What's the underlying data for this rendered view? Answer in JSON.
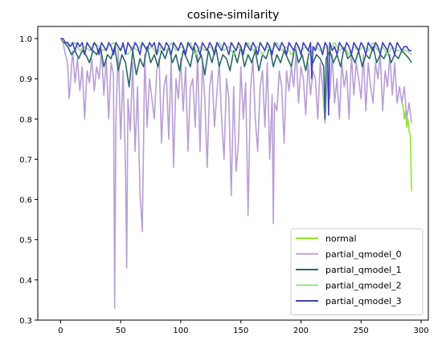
{
  "chart_data": {
    "type": "line",
    "title": "cosine-similarity",
    "xlabel": "",
    "ylabel": "",
    "xlim": [
      -19,
      306
    ],
    "ylim": [
      0.3,
      1.03
    ],
    "x_ticks": [
      0,
      50,
      100,
      150,
      200,
      250,
      300
    ],
    "y_ticks": [
      0.3,
      0.4,
      0.5,
      0.6,
      0.7,
      0.8,
      0.9,
      1.0
    ],
    "x_tick_labels": [
      "0",
      "50",
      "100",
      "150",
      "200",
      "250",
      "300"
    ],
    "y_tick_labels": [
      "0.3",
      "0.4",
      "0.5",
      "0.6",
      "0.7",
      "0.8",
      "0.9",
      "1.0"
    ],
    "grid": false,
    "legend_position": "lower-right",
    "series": [
      {
        "name": "normal",
        "color": "#8ee82a",
        "x": [
          284,
          285,
          286,
          287,
          288,
          289,
          290,
          291,
          292
        ],
        "y": [
          0.84,
          0.83,
          0.8,
          0.82,
          0.78,
          0.8,
          0.77,
          0.76,
          0.62
        ]
      },
      {
        "name": "partial_qmodel_0",
        "color": "#b89fd6",
        "x": [
          0,
          2,
          4,
          5,
          6,
          7,
          8,
          10,
          12,
          14,
          16,
          18,
          20,
          22,
          24,
          26,
          28,
          30,
          32,
          34,
          36,
          38,
          40,
          42,
          44,
          45,
          46,
          48,
          50,
          52,
          54,
          55,
          56,
          58,
          60,
          62,
          64,
          66,
          68,
          70,
          72,
          74,
          76,
          78,
          80,
          82,
          84,
          86,
          88,
          90,
          92,
          94,
          96,
          98,
          100,
          102,
          104,
          106,
          108,
          110,
          112,
          114,
          116,
          118,
          120,
          122,
          124,
          126,
          128,
          130,
          132,
          134,
          136,
          138,
          140,
          142,
          144,
          146,
          148,
          150,
          152,
          154,
          156,
          158,
          160,
          162,
          164,
          166,
          168,
          170,
          172,
          174,
          176,
          177,
          178,
          180,
          182,
          184,
          186,
          188,
          190,
          192,
          194,
          196,
          198,
          200,
          202,
          204,
          206,
          208,
          210,
          212,
          214,
          216,
          218,
          220,
          222,
          224,
          226,
          228,
          230,
          232,
          234,
          236,
          238,
          240,
          242,
          244,
          246,
          248,
          250,
          252,
          254,
          256,
          258,
          260,
          262,
          264,
          266,
          268,
          270,
          272,
          274,
          276,
          278,
          280,
          282,
          284,
          286,
          288,
          290,
          292
        ],
        "y": [
          1.0,
          0.99,
          0.96,
          0.95,
          0.93,
          0.85,
          0.88,
          0.97,
          0.89,
          0.95,
          0.87,
          0.93,
          0.8,
          0.92,
          0.89,
          0.95,
          0.87,
          0.93,
          0.9,
          0.97,
          0.86,
          0.95,
          0.8,
          0.94,
          0.91,
          0.33,
          0.8,
          0.97,
          0.75,
          0.92,
          0.68,
          0.43,
          0.85,
          0.77,
          0.94,
          0.72,
          0.88,
          0.62,
          0.52,
          0.96,
          0.78,
          0.9,
          0.85,
          0.8,
          0.92,
          0.95,
          0.74,
          0.88,
          0.91,
          0.75,
          0.95,
          0.68,
          0.9,
          0.85,
          0.95,
          0.82,
          0.93,
          0.72,
          0.88,
          0.9,
          0.78,
          0.96,
          0.72,
          0.94,
          0.85,
          0.68,
          0.88,
          0.92,
          0.78,
          0.86,
          0.94,
          0.8,
          0.7,
          0.9,
          0.85,
          0.61,
          0.88,
          0.67,
          0.74,
          0.93,
          0.8,
          0.89,
          0.56,
          0.87,
          0.95,
          0.8,
          0.72,
          0.88,
          0.92,
          0.78,
          0.94,
          0.7,
          0.86,
          0.54,
          0.84,
          0.82,
          0.92,
          0.88,
          0.74,
          0.92,
          0.87,
          0.93,
          0.88,
          0.97,
          0.84,
          0.93,
          0.9,
          0.81,
          0.94,
          0.86,
          0.92,
          0.9,
          0.8,
          0.94,
          0.88,
          0.79,
          0.92,
          0.85,
          0.96,
          0.84,
          0.9,
          0.8,
          0.94,
          0.88,
          0.92,
          0.8,
          0.96,
          0.86,
          0.94,
          0.9,
          0.85,
          0.96,
          0.82,
          0.94,
          0.88,
          0.84,
          0.94,
          0.9,
          0.96,
          0.82,
          0.92,
          0.88,
          0.96,
          0.86,
          0.94,
          0.84,
          0.88,
          0.84,
          0.88,
          0.8,
          0.84,
          0.79
        ]
      },
      {
        "name": "partial_qmodel_1",
        "color": "#2a6a6a",
        "x": [
          0,
          3,
          6,
          9,
          12,
          15,
          18,
          21,
          24,
          27,
          30,
          33,
          36,
          39,
          42,
          45,
          48,
          51,
          54,
          57,
          60,
          63,
          66,
          69,
          72,
          75,
          78,
          81,
          84,
          87,
          90,
          93,
          96,
          99,
          102,
          105,
          108,
          111,
          114,
          117,
          120,
          123,
          126,
          129,
          132,
          135,
          138,
          141,
          144,
          147,
          150,
          153,
          156,
          159,
          162,
          165,
          168,
          171,
          174,
          177,
          180,
          183,
          186,
          189,
          192,
          195,
          198,
          201,
          204,
          207,
          210,
          213,
          216,
          219,
          220,
          221,
          224,
          227,
          230,
          233,
          236,
          239,
          242,
          245,
          248,
          251,
          254,
          257,
          260,
          263,
          266,
          269,
          272,
          275,
          278,
          281,
          284,
          287,
          290,
          292
        ],
        "y": [
          1.0,
          0.99,
          0.98,
          0.96,
          0.97,
          0.95,
          0.97,
          0.96,
          0.94,
          0.97,
          0.96,
          0.98,
          0.93,
          0.96,
          0.95,
          0.98,
          0.92,
          0.96,
          0.94,
          0.88,
          0.97,
          0.91,
          0.95,
          0.93,
          0.98,
          0.94,
          0.96,
          0.93,
          0.97,
          0.95,
          0.98,
          0.94,
          0.96,
          0.92,
          0.97,
          0.95,
          0.93,
          0.98,
          0.94,
          0.96,
          0.91,
          0.97,
          0.94,
          0.98,
          0.93,
          0.96,
          0.95,
          0.92,
          0.97,
          0.94,
          0.98,
          0.93,
          0.96,
          0.94,
          0.97,
          0.92,
          0.96,
          0.95,
          0.98,
          0.93,
          0.96,
          0.94,
          0.97,
          0.95,
          0.93,
          0.98,
          0.94,
          0.96,
          0.92,
          0.97,
          0.94,
          0.96,
          0.95,
          0.93,
          0.8,
          0.95,
          0.97,
          0.94,
          0.96,
          0.93,
          0.98,
          0.95,
          0.96,
          0.94,
          0.97,
          0.93,
          0.96,
          0.95,
          0.98,
          0.94,
          0.96,
          0.95,
          0.97,
          0.94,
          0.96,
          0.95,
          0.97,
          0.96,
          0.95,
          0.94
        ]
      },
      {
        "name": "partial_qmodel_2",
        "color": "#97e08a",
        "x": [
          0,
          4,
          8,
          12,
          16,
          20,
          24,
          28,
          32,
          36,
          40,
          44,
          48,
          52,
          56,
          60,
          64,
          68,
          72,
          76,
          80,
          84,
          88,
          92,
          96,
          100,
          104,
          108,
          112,
          116,
          120,
          124,
          128,
          132,
          136,
          140,
          144,
          148,
          152,
          156,
          160,
          164,
          168,
          172,
          176,
          180,
          184,
          188,
          192,
          196,
          200,
          204,
          208,
          212,
          216,
          220,
          224,
          228,
          232,
          236,
          240,
          244,
          248,
          252,
          256,
          260,
          264,
          268,
          272,
          276,
          280,
          284,
          288,
          292
        ],
        "y": [
          1.0,
          0.99,
          0.98,
          0.99,
          0.97,
          0.98,
          0.97,
          0.99,
          0.98,
          0.97,
          0.98,
          0.99,
          0.97,
          0.98,
          0.96,
          0.98,
          0.97,
          0.99,
          0.97,
          0.98,
          0.96,
          0.98,
          0.97,
          0.99,
          0.97,
          0.98,
          0.97,
          0.99,
          0.96,
          0.98,
          0.97,
          0.98,
          0.97,
          0.99,
          0.97,
          0.98,
          0.96,
          0.98,
          0.97,
          0.99,
          0.97,
          0.98,
          0.96,
          0.98,
          0.97,
          0.99,
          0.97,
          0.98,
          0.96,
          0.98,
          0.97,
          0.98,
          0.96,
          0.98,
          0.97,
          0.98,
          0.97,
          0.99,
          0.97,
          0.98,
          0.96,
          0.98,
          0.97,
          0.98,
          0.97,
          0.99,
          0.97,
          0.98,
          0.96,
          0.98,
          0.97,
          0.97,
          0.97,
          0.96
        ]
      },
      {
        "name": "partial_qmodel_3",
        "color": "#4040c0",
        "x": [
          0,
          2,
          4,
          6,
          8,
          10,
          12,
          14,
          16,
          18,
          20,
          22,
          24,
          26,
          28,
          30,
          32,
          34,
          36,
          38,
          40,
          42,
          44,
          46,
          48,
          50,
          52,
          54,
          56,
          58,
          60,
          62,
          64,
          66,
          68,
          70,
          72,
          74,
          76,
          78,
          80,
          82,
          84,
          86,
          88,
          90,
          92,
          94,
          96,
          98,
          100,
          102,
          104,
          106,
          108,
          110,
          112,
          114,
          116,
          118,
          120,
          122,
          124,
          126,
          128,
          130,
          132,
          134,
          136,
          138,
          140,
          142,
          144,
          146,
          148,
          150,
          152,
          154,
          156,
          158,
          160,
          162,
          164,
          166,
          168,
          170,
          172,
          174,
          176,
          178,
          180,
          182,
          184,
          186,
          188,
          190,
          192,
          194,
          196,
          198,
          200,
          202,
          204,
          206,
          208,
          209,
          210,
          212,
          214,
          216,
          218,
          220,
          222,
          223,
          224,
          226,
          228,
          230,
          232,
          234,
          236,
          238,
          240,
          242,
          244,
          246,
          248,
          250,
          252,
          254,
          256,
          258,
          260,
          262,
          264,
          266,
          268,
          270,
          272,
          274,
          276,
          278,
          280,
          282,
          284,
          286,
          288,
          290,
          292
        ],
        "y": [
          1.0,
          1.0,
          0.99,
          0.99,
          0.98,
          0.99,
          0.97,
          0.99,
          0.98,
          0.99,
          0.96,
          0.99,
          0.98,
          0.97,
          0.99,
          0.98,
          0.96,
          0.99,
          0.98,
          0.97,
          0.99,
          0.98,
          0.96,
          0.99,
          0.98,
          0.97,
          0.99,
          0.96,
          0.99,
          0.98,
          0.97,
          0.99,
          0.98,
          0.96,
          0.99,
          0.98,
          0.97,
          0.99,
          0.98,
          0.99,
          0.96,
          0.99,
          0.98,
          0.97,
          0.99,
          0.98,
          0.96,
          0.99,
          0.98,
          0.97,
          0.99,
          0.98,
          0.96,
          0.99,
          0.98,
          0.97,
          0.99,
          0.98,
          0.96,
          0.99,
          0.98,
          0.97,
          0.99,
          0.98,
          0.96,
          0.99,
          0.98,
          0.97,
          0.99,
          0.98,
          0.96,
          0.99,
          0.98,
          0.97,
          0.99,
          0.98,
          0.96,
          0.99,
          0.98,
          0.97,
          0.99,
          0.98,
          0.96,
          0.99,
          0.98,
          0.97,
          0.99,
          0.98,
          0.96,
          0.99,
          0.98,
          0.97,
          0.99,
          0.98,
          0.96,
          0.99,
          0.98,
          0.97,
          0.99,
          0.98,
          0.96,
          0.99,
          0.98,
          0.97,
          0.99,
          0.9,
          0.98,
          0.97,
          0.99,
          0.98,
          0.96,
          0.99,
          0.98,
          0.81,
          0.99,
          0.97,
          0.98,
          0.96,
          0.99,
          0.98,
          0.97,
          0.99,
          0.98,
          0.96,
          0.99,
          0.98,
          0.97,
          0.99,
          0.98,
          0.96,
          0.99,
          0.98,
          0.97,
          0.99,
          0.98,
          0.96,
          0.99,
          0.98,
          0.97,
          0.99,
          0.98,
          0.96,
          0.99,
          0.98,
          0.97,
          0.98,
          0.98,
          0.97,
          0.97
        ]
      }
    ]
  }
}
